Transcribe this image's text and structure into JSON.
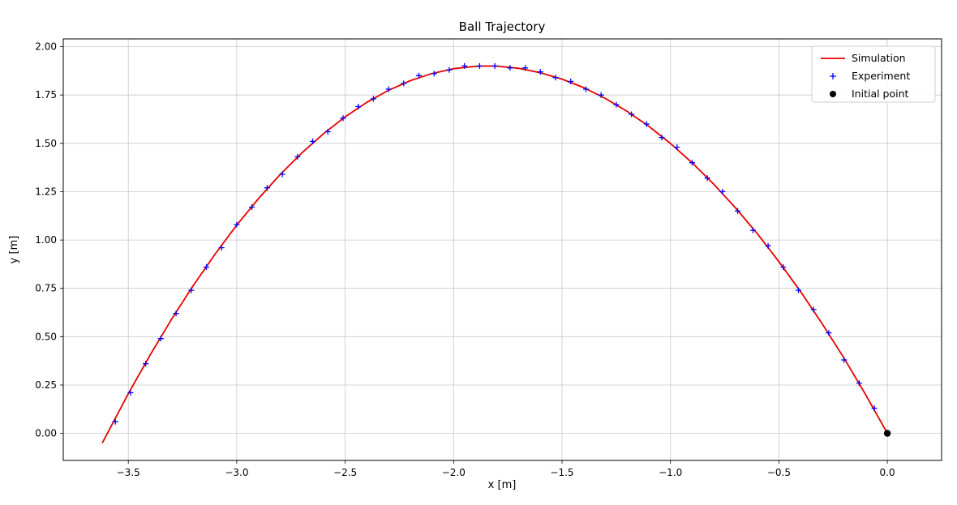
{
  "title": "Ball Trajectory",
  "chart_data": {
    "type": "line",
    "title": "Ball Trajectory",
    "xlabel": "x [m]",
    "ylabel": "y [m]",
    "xlim": [
      -3.8,
      0.25
    ],
    "ylim": [
      -0.14,
      2.04
    ],
    "grid": true,
    "legend_position": "upper right",
    "xticks": [
      -3.5,
      -3.0,
      -2.5,
      -2.0,
      -1.5,
      -1.0,
      -0.5,
      0.0
    ],
    "xtick_labels": [
      "−3.5",
      "−3.0",
      "−2.5",
      "−2.0",
      "−1.5",
      "−1.0",
      "−0.5",
      "0.0"
    ],
    "yticks": [
      0.0,
      0.25,
      0.5,
      0.75,
      1.0,
      1.25,
      1.5,
      1.75,
      2.0
    ],
    "ytick_labels": [
      "0.00",
      "0.25",
      "0.50",
      "0.75",
      "1.00",
      "1.25",
      "1.50",
      "1.75",
      "2.00"
    ],
    "series": [
      {
        "name": "Simulation",
        "type": "line",
        "color": "#e60000",
        "x": [
          -3.62,
          -3.6,
          -3.5,
          -3.4,
          -3.3,
          -3.2,
          -3.1,
          -3.0,
          -2.9,
          -2.8,
          -2.7,
          -2.6,
          -2.5,
          -2.4,
          -2.3,
          -2.2,
          -2.1,
          -2.0,
          -1.9,
          -1.85,
          -1.8,
          -1.7,
          -1.6,
          -1.5,
          -1.4,
          -1.3,
          -1.2,
          -1.1,
          -1.0,
          -0.9,
          -0.8,
          -0.7,
          -0.6,
          -0.5,
          -0.4,
          -0.3,
          -0.2,
          -0.1,
          0.0
        ],
        "y": [
          -0.05,
          -0.007,
          0.205,
          0.404,
          0.591,
          0.765,
          0.927,
          1.077,
          1.214,
          1.338,
          1.45,
          1.55,
          1.637,
          1.712,
          1.774,
          1.824,
          1.861,
          1.886,
          1.898,
          1.9,
          1.899,
          1.888,
          1.865,
          1.832,
          1.788,
          1.732,
          1.665,
          1.588,
          1.499,
          1.399,
          1.288,
          1.166,
          1.033,
          0.888,
          0.733,
          0.566,
          0.389,
          0.2,
          0.0
        ]
      },
      {
        "name": "Experiment",
        "type": "scatter",
        "marker": "plus",
        "color": "#0000ff",
        "x": [
          -3.56,
          -3.49,
          -3.42,
          -3.35,
          -3.28,
          -3.21,
          -3.14,
          -3.07,
          -3.0,
          -2.93,
          -2.86,
          -2.79,
          -2.72,
          -2.65,
          -2.58,
          -2.51,
          -2.44,
          -2.37,
          -2.3,
          -2.23,
          -2.16,
          -2.09,
          -2.02,
          -1.95,
          -1.88,
          -1.81,
          -1.74,
          -1.67,
          -1.6,
          -1.53,
          -1.46,
          -1.39,
          -1.32,
          -1.25,
          -1.18,
          -1.11,
          -1.04,
          -0.97,
          -0.9,
          -0.83,
          -0.76,
          -0.69,
          -0.62,
          -0.55,
          -0.48,
          -0.41,
          -0.34,
          -0.27,
          -0.2,
          -0.13,
          -0.06
        ],
        "y": [
          0.06,
          0.21,
          0.36,
          0.49,
          0.62,
          0.74,
          0.86,
          0.96,
          1.08,
          1.17,
          1.27,
          1.34,
          1.43,
          1.51,
          1.56,
          1.63,
          1.69,
          1.73,
          1.78,
          1.81,
          1.85,
          1.86,
          1.88,
          1.9,
          1.9,
          1.9,
          1.89,
          1.89,
          1.87,
          1.84,
          1.82,
          1.78,
          1.75,
          1.7,
          1.65,
          1.6,
          1.53,
          1.48,
          1.4,
          1.32,
          1.25,
          1.15,
          1.05,
          0.97,
          0.86,
          0.74,
          0.64,
          0.52,
          0.38,
          0.26,
          0.13
        ]
      },
      {
        "name": "Initial point",
        "type": "scatter",
        "marker": "circle",
        "color": "#000000",
        "x": [
          0.0
        ],
        "y": [
          0.0
        ]
      }
    ]
  }
}
